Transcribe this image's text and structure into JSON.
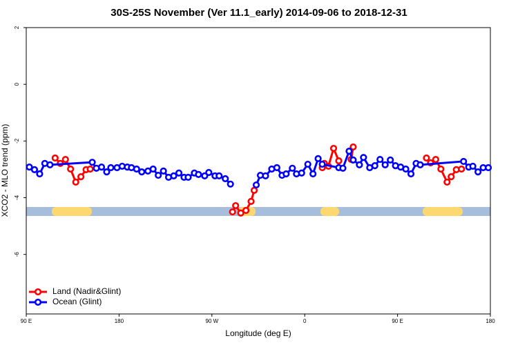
{
  "chart_data": {
    "type": "line",
    "title": "30S-25S November (Ver 11.1_early)   2014-09-06 to 2018-12-31",
    "x_label": "Longitude (deg E)",
    "y_label": "XCO2 - MLO trend (ppm)",
    "xlim": [
      90,
      540
    ],
    "ylim": [
      -8.1,
      2
    ],
    "xticks": [
      {
        "value": 90,
        "label": "90 E"
      },
      180,
      {
        "value": 270,
        "label": "90 W"
      },
      {
        "value": 360,
        "label": "0"
      },
      {
        "value": 450,
        "label": "90 E"
      },
      {
        "value": 540,
        "label": "180"
      }
    ],
    "yticks": [
      -6,
      -4,
      -2,
      0,
      2
    ],
    "legend": "bottom-left",
    "series": [
      {
        "name": "Land (Nadir&Glint)",
        "color": "#ff0000",
        "x": [
          118,
          123,
          128,
          133,
          138,
          143,
          148,
          152,
          null,
          290,
          293,
          298,
          303,
          308,
          311,
          null,
          377,
          379,
          383,
          388,
          393,
          null,
          405,
          407,
          null,
          478,
          482,
          487,
          492,
          498,
          502,
          507,
          512
        ],
        "values": [
          -2.6,
          -2.79,
          -2.65,
          -2.99,
          -3.45,
          -3.26,
          -3.01,
          -2.99,
          null,
          -4.5,
          -4.28,
          -4.54,
          -4.45,
          -4.13,
          -3.74,
          null,
          -2.94,
          -2.79,
          -2.89,
          -2.26,
          -2.7,
          null,
          -2.65,
          -2.21,
          null,
          -2.6,
          -2.77,
          -2.65,
          -2.99,
          -3.45,
          -3.26,
          -3.01,
          -2.99
        ]
      },
      {
        "name": "Ocean (Glint)",
        "color": "#0000ff",
        "x": [
          93,
          98,
          103,
          108,
          113,
          154,
          158,
          163,
          168,
          172,
          178,
          183,
          188,
          192,
          197,
          202,
          208,
          213,
          218,
          223,
          228,
          233,
          238,
          243,
          247,
          253,
          257,
          263,
          267,
          273,
          277,
          283,
          288,
          null,
          313,
          317,
          322,
          328,
          333,
          338,
          342,
          348,
          352,
          357,
          363,
          368,
          373,
          377,
          393,
          397,
          403,
          407,
          413,
          417,
          423,
          428,
          433,
          438,
          443,
          448,
          453,
          458,
          463,
          468,
          472,
          514,
          519,
          523,
          528,
          533,
          538
        ],
        "values": [
          -2.92,
          -3.01,
          -3.16,
          -2.79,
          -2.84,
          -2.75,
          -2.96,
          -2.92,
          -3.09,
          -2.94,
          -2.94,
          -2.89,
          -2.92,
          -2.94,
          -2.99,
          -3.09,
          -3.06,
          -2.99,
          -3.21,
          -3.06,
          -3.28,
          -3.23,
          -3.13,
          -3.28,
          -3.28,
          -3.13,
          -3.18,
          -3.23,
          -3.11,
          -3.23,
          -3.23,
          -3.33,
          -3.52,
          null,
          -3.55,
          -3.21,
          -3.23,
          -2.99,
          -2.94,
          -3.21,
          -3.16,
          -2.96,
          -3.16,
          -3.13,
          -2.82,
          -3.16,
          -2.62,
          -2.82,
          -2.94,
          -2.96,
          -2.36,
          -2.67,
          -2.84,
          -2.58,
          -2.94,
          -2.87,
          -2.65,
          -2.84,
          -2.67,
          -2.87,
          -2.92,
          -2.99,
          -3.16,
          -2.79,
          -2.84,
          -2.72,
          -2.92,
          -2.89,
          -3.09,
          -2.94,
          -2.94
        ]
      }
    ]
  }
}
